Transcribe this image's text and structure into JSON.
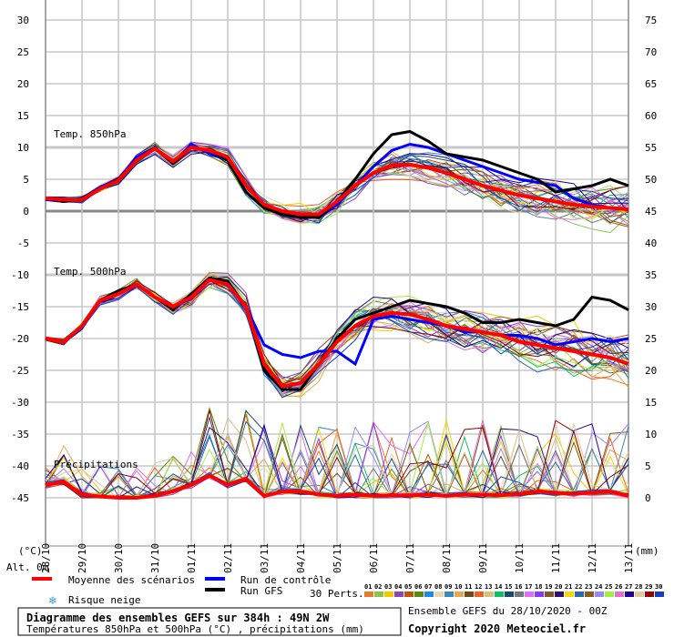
{
  "chart_data": {
    "type": "line",
    "title": "Diagramme des ensembles GEFS sur 384h : 49N 2W",
    "subtitle": "Températures 850hPa et 500hPa (°C) , précipitations (mm)",
    "run_info": "Ensemble GEFS du 28/10/2020 - 00Z",
    "copyright": "Copyright 2020 Meteociel.fr",
    "left_unit": "(°C)",
    "right_unit": "(mm)",
    "alt": "Alt. 0m",
    "left_ylim": [
      -45,
      30
    ],
    "right_ylim": [
      0,
      75
    ],
    "left_ticks": [
      30,
      25,
      20,
      15,
      10,
      5,
      0,
      -5,
      -10,
      -15,
      -20,
      -25,
      -30,
      -35,
      -40,
      -45
    ],
    "right_ticks": [
      75,
      70,
      65,
      60,
      55,
      50,
      45,
      40,
      35,
      30,
      25,
      20,
      15,
      10,
      5,
      0
    ],
    "dates": [
      "28/10",
      "29/10",
      "30/10",
      "31/10",
      "01/11",
      "02/11",
      "03/11",
      "04/11",
      "05/11",
      "06/11",
      "07/11",
      "08/11",
      "09/11",
      "10/11",
      "11/11",
      "12/11",
      "13/11"
    ],
    "x_step_days": 0.5,
    "panel_labels": {
      "t850": "Temp. 850hPa",
      "t500": "Temp. 500hPa",
      "precip": "Précipitations"
    },
    "series": {
      "t850_mean": [
        2,
        1.8,
        1.8,
        3.5,
        4.8,
        8,
        9.8,
        7.8,
        10,
        9.5,
        8.5,
        4,
        1,
        0,
        -0.5,
        -0.5,
        1.5,
        4,
        6,
        7.2,
        7.3,
        6.8,
        6,
        5,
        4,
        3.2,
        2.5,
        2,
        1.5,
        1,
        0.7,
        0.5,
        0.3
      ],
      "t850_control": [
        1.8,
        1.5,
        2,
        3.8,
        5,
        8.5,
        10,
        7.5,
        10.5,
        9,
        8,
        3,
        0.5,
        -0.5,
        -1,
        -1,
        1,
        4,
        7,
        9.5,
        10.5,
        10,
        9,
        8,
        7,
        6,
        5,
        4.5,
        4,
        2,
        1,
        0.5,
        0.2
      ],
      "t850_gfs": [
        2,
        1.5,
        2,
        3.5,
        5,
        8,
        10,
        7.5,
        10,
        9.5,
        8,
        3,
        0.5,
        -0.5,
        -1,
        -1,
        1.5,
        5,
        9,
        12,
        12.5,
        11,
        9,
        8.5,
        8,
        7,
        6,
        5,
        3,
        3.5,
        4,
        5,
        4
      ],
      "t500_mean": [
        -20,
        -20.5,
        -18,
        -14,
        -13,
        -11.5,
        -13.5,
        -15,
        -13.5,
        -10.8,
        -11.5,
        -15,
        -24,
        -27.5,
        -27,
        -24,
        -20.5,
        -18,
        -16.5,
        -16,
        -16.2,
        -17,
        -18,
        -18.5,
        -19,
        -19.5,
        -20.5,
        -21,
        -21.5,
        -22,
        -22.5,
        -23,
        -24
      ],
      "t500_control": [
        -20,
        -20.5,
        -18,
        -14,
        -12.5,
        -11.5,
        -13.5,
        -15.5,
        -13,
        -10.5,
        -11,
        -15,
        -21,
        -22.5,
        -23,
        -22,
        -22,
        -24,
        -17,
        -16.5,
        -17,
        -17.5,
        -18,
        -19,
        -19,
        -19.5,
        -19.5,
        -20,
        -21,
        -20.5,
        -20,
        -20.5,
        -20
      ],
      "t500_gfs": [
        -20,
        -20.5,
        -18,
        -14,
        -12.5,
        -11.5,
        -13.5,
        -15.5,
        -13,
        -10.5,
        -11,
        -15,
        -25,
        -28,
        -28,
        -24,
        -20,
        -17,
        -16,
        -15,
        -14,
        -14.5,
        -15,
        -16,
        -17.5,
        -17.5,
        -17,
        -17.5,
        -18,
        -17,
        -13.5,
        -14,
        -15.5
      ],
      "precip_mean": [
        2,
        2.5,
        0.5,
        0.2,
        0,
        0,
        0.3,
        1,
        2,
        3.5,
        2,
        3,
        0.3,
        1,
        1,
        0.5,
        0.3,
        0.5,
        0.3,
        0.4,
        0.4,
        0.5,
        0.3,
        0.5,
        0.5,
        0.4,
        0.6,
        1,
        0.8,
        0.6,
        0.8,
        1,
        0.3
      ],
      "perturbation_spread": {
        "t850": [
          0.5,
          4
        ],
        "t500": [
          0.5,
          5
        ],
        "precip": [
          1,
          6
        ]
      }
    },
    "legend": {
      "mean": "Moyenne des scénarios",
      "control": "Run de contrôle",
      "gfs": "Run GFS",
      "snow": "Risque neige",
      "perts": "30 Perts."
    },
    "colors": {
      "mean": "#ff0000",
      "control": "#0000ff",
      "gfs": "#000000"
    },
    "pert_labels": [
      "01",
      "02",
      "03",
      "04",
      "05",
      "06",
      "07",
      "08",
      "09",
      "10",
      "11",
      "12",
      "13",
      "14",
      "15",
      "16",
      "17",
      "18",
      "19",
      "20",
      "21",
      "22",
      "23",
      "24",
      "25",
      "26",
      "27",
      "28",
      "29",
      "30"
    ],
    "pert_colors": [
      "#e87a2c",
      "#8bc34a",
      "#f0c800",
      "#8e44ad",
      "#b8560f",
      "#5a8a10",
      "#1e88e5",
      "#e8d8b0",
      "#3a8ab8",
      "#e8a850",
      "#6b4a1a",
      "#f06020",
      "#d4c080",
      "#10c060",
      "#1a4a6a",
      "#707880",
      "#e070f0",
      "#8a3af0",
      "#7a5a2a",
      "#30106a",
      "#f0d800",
      "#2a6aa8",
      "#8a5a20",
      "#9a8af0",
      "#a0f040",
      "#e070d0",
      "#200090",
      "#e0c8a0",
      "#900000",
      "#1040c0"
    ]
  }
}
